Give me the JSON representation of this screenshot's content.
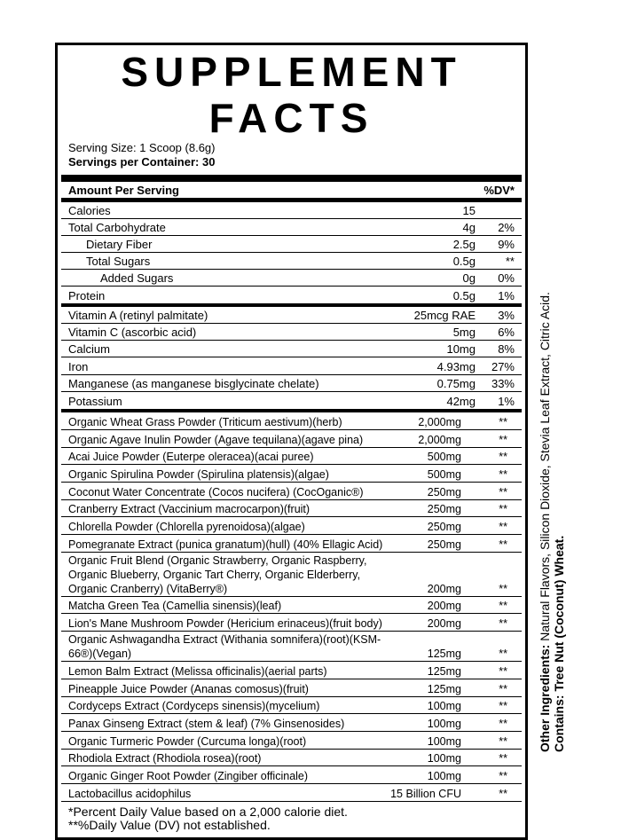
{
  "title": "SUPPLEMENT FACTS",
  "serving_size": "Serving Size: 1 Scoop (8.6g)",
  "servings_per_container": "Servings per Container: 30",
  "header": {
    "amount": "Amount Per Serving",
    "dv": "%DV*"
  },
  "nutrients": [
    {
      "name": "Calories",
      "amount": "15",
      "dv": "",
      "indent": 0
    },
    {
      "name": "Total Carbohydrate",
      "amount": "4g",
      "dv": "2%",
      "indent": 0
    },
    {
      "name": "Dietary Fiber",
      "amount": "2.5g",
      "dv": "9%",
      "indent": 1
    },
    {
      "name": "Total Sugars",
      "amount": "0.5g",
      "dv": "**",
      "indent": 1
    },
    {
      "name": "Added Sugars",
      "amount": "0g",
      "dv": "0%",
      "indent": 2
    },
    {
      "name": "Protein",
      "amount": "0.5g",
      "dv": "1%",
      "indent": 0
    }
  ],
  "vitamins": [
    {
      "name": "Vitamin A (retinyl palmitate)",
      "amount": "25mcg RAE",
      "dv": "3%"
    },
    {
      "name": "Vitamin C (ascorbic acid)",
      "amount": "5mg",
      "dv": "6%"
    },
    {
      "name": "Calcium",
      "amount": "10mg",
      "dv": "8%"
    },
    {
      "name": "Iron",
      "amount": "4.93mg",
      "dv": "27%"
    },
    {
      "name": "Manganese (as manganese bisglycinate chelate)",
      "amount": "0.75mg",
      "dv": "33%"
    },
    {
      "name": "Potassium",
      "amount": "42mg",
      "dv": "1%"
    }
  ],
  "ingredients": [
    {
      "name": "Organic Wheat Grass Powder (Triticum aestivum)(herb)",
      "amount": "2,000mg",
      "dv": "**"
    },
    {
      "name": "Organic Agave Inulin Powder (Agave tequilana)(agave pina)",
      "amount": "2,000mg",
      "dv": "**"
    },
    {
      "name": "Acai Juice Powder (Euterpe oleracea)(acai puree)",
      "amount": "500mg",
      "dv": "**"
    },
    {
      "name": "Organic Spirulina Powder (Spirulina platensis)(algae)",
      "amount": "500mg",
      "dv": "**"
    },
    {
      "name": "Coconut Water Concentrate (Cocos nucifera) (CocOganic®)",
      "amount": "250mg",
      "dv": "**"
    },
    {
      "name": "Cranberry Extract (Vaccinium macrocarpon)(fruit)",
      "amount": "250mg",
      "dv": "**"
    },
    {
      "name": "Chlorella Powder (Chlorella pyrenoidosa)(algae)",
      "amount": "250mg",
      "dv": "**"
    },
    {
      "name": "Pomegranate Extract (punica granatum)(hull) (40% Ellagic Acid)",
      "amount": "250mg",
      "dv": "**"
    },
    {
      "name": "Organic Fruit Blend (Organic Strawberry, Organic Raspberry, Organic Blueberry, Organic Tart Cherry, Organic Elderberry, Organic Cranberry) (VitaBerry®)",
      "amount": "200mg",
      "dv": "**"
    },
    {
      "name": "Matcha Green Tea (Camellia sinensis)(leaf)",
      "amount": "200mg",
      "dv": "**"
    },
    {
      "name": "Lion's Mane Mushroom Powder (Hericium erinaceus)(fruit body)",
      "amount": "200mg",
      "dv": "**"
    },
    {
      "name": "Organic Ashwagandha Extract (Withania somnifera)(root)(KSM-66®)(Vegan)",
      "amount": "125mg",
      "dv": "**"
    },
    {
      "name": "Lemon Balm Extract (Melissa officinalis)(aerial parts)",
      "amount": "125mg",
      "dv": "**"
    },
    {
      "name": "Pineapple Juice Powder (Ananas comosus)(fruit)",
      "amount": "125mg",
      "dv": "**"
    },
    {
      "name": "Cordyceps Extract (Cordyceps sinensis)(mycelium)",
      "amount": "100mg",
      "dv": "**"
    },
    {
      "name": "Panax Ginseng Extract (stem & leaf) (7% Ginsenosides)",
      "amount": "100mg",
      "dv": "**"
    },
    {
      "name": "Organic Turmeric Powder (Curcuma longa)(root)",
      "amount": "100mg",
      "dv": "**"
    },
    {
      "name": "Rhodiola Extract (Rhodiola rosea)(root)",
      "amount": "100mg",
      "dv": "**"
    },
    {
      "name": "Organic Ginger Root Powder (Zingiber officinale)",
      "amount": "100mg",
      "dv": "**"
    },
    {
      "name": "Lactobacillus acidophilus",
      "amount": "15 Billion CFU",
      "dv": "**"
    }
  ],
  "footnotes": [
    "*Percent Daily Value based on a 2,000 calorie diet.",
    "**%Daily Value (DV) not established."
  ],
  "other_ingredients": {
    "label": "Other Ingredients:",
    "text": " Natural Flavors, Silicon Dioxide, Stevia Leaf Extract, Citric Acid."
  },
  "contains": {
    "label": "Contains: Tree Nut (Coconut)",
    "text": " Wheat."
  }
}
